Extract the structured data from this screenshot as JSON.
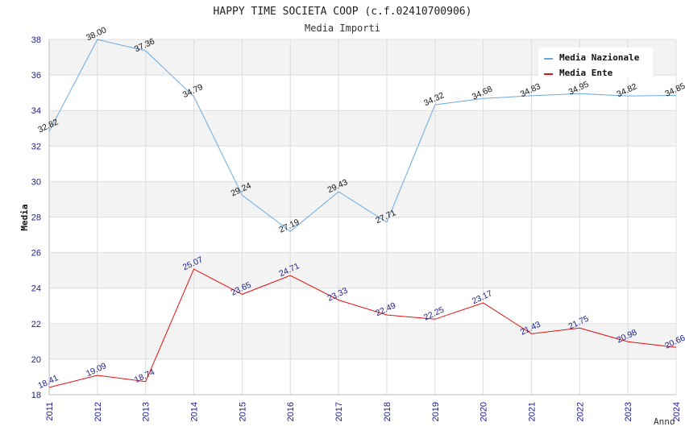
{
  "chart_data": {
    "type": "line",
    "title": "HAPPY TIME SOCIETA COOP (c.f.02410700906)",
    "subtitle": "Media Importi",
    "ylabel": "Media",
    "xlabel": "Anno",
    "ylim": [
      18,
      38
    ],
    "yticks": [
      "18",
      "20",
      "22",
      "24",
      "26",
      "28",
      "30",
      "32",
      "34",
      "36",
      "38"
    ],
    "x": [
      "2011",
      "2012",
      "2013",
      "2014",
      "2015",
      "2016",
      "2017",
      "2018",
      "2019",
      "2020",
      "2021",
      "2022",
      "2023",
      "2024"
    ],
    "grid": "horizontal bands",
    "legend": "top-right",
    "series": [
      {
        "name": "Media Nazionale",
        "color": "#6aa9e0",
        "label_color": "#111111",
        "values": [
          32.82,
          38.0,
          37.36,
          34.79,
          29.24,
          27.19,
          29.43,
          27.71,
          34.32,
          34.68,
          34.83,
          34.95,
          34.82,
          34.85
        ],
        "labels": [
          "32.82",
          "38.00",
          "37.36",
          "34.79",
          "29.24",
          "27.19",
          "29.43",
          "27.71",
          "34.32",
          "34.68",
          "34.83",
          "34.95",
          "34.82",
          "34.85"
        ]
      },
      {
        "name": "Media Ente",
        "color": "#e01010",
        "label_color": "#1a1a8c",
        "values": [
          18.41,
          19.09,
          18.74,
          25.07,
          23.65,
          24.71,
          23.33,
          22.49,
          22.25,
          23.17,
          21.43,
          21.75,
          20.98,
          20.66
        ],
        "labels": [
          "18.41",
          "19.09",
          "18.74",
          "25.07",
          "23.65",
          "24.71",
          "23.33",
          "22.49",
          "22.25",
          "23.17",
          "21.43",
          "21.75",
          "20.98",
          "20.66"
        ]
      }
    ]
  }
}
